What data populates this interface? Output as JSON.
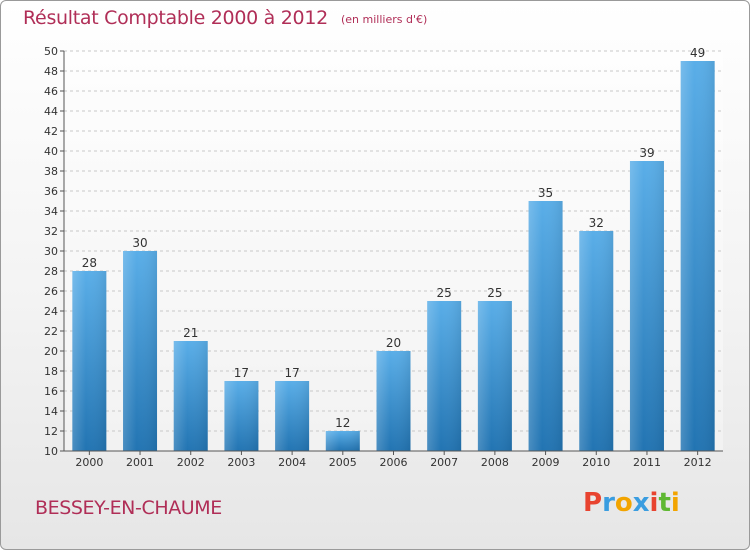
{
  "header": {
    "title": "Résultat Comptable 2000 à 2012",
    "subtitle": "(en milliers d'€)"
  },
  "footer": {
    "commune": "BESSEY-EN-CHAUME",
    "logo_letters": [
      {
        "char": "P",
        "color": "#e8432f"
      },
      {
        "char": "r",
        "color": "#3a9de0"
      },
      {
        "char": "o",
        "color": "#f2a400"
      },
      {
        "char": "x",
        "color": "#3a9de0"
      },
      {
        "char": "i",
        "color": "#e8432f"
      },
      {
        "char": "t",
        "color": "#5fb832"
      },
      {
        "char": "i",
        "color": "#f2a400"
      }
    ]
  },
  "chart_data": {
    "type": "bar",
    "title": "Résultat Comptable 2000 à 2012",
    "ylabel": "en milliers d'€",
    "xlabel": "",
    "categories": [
      "2000",
      "2001",
      "2002",
      "2003",
      "2004",
      "2005",
      "2006",
      "2007",
      "2008",
      "2009",
      "2010",
      "2011",
      "2012"
    ],
    "values": [
      28,
      30,
      21,
      17,
      17,
      12,
      20,
      25,
      25,
      35,
      32,
      39,
      49
    ],
    "ylim": [
      10,
      50
    ],
    "ytick_step": 2,
    "grid": true,
    "colors": {
      "bar_light": "#5aaee8",
      "bar_dark": "#2274b2",
      "grid": "#c8c8c8",
      "axis": "#555555"
    }
  }
}
